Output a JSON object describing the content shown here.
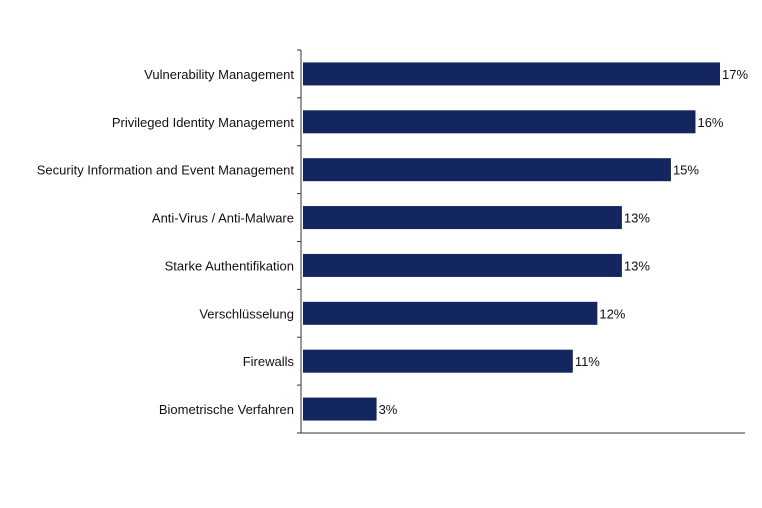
{
  "chart_data": {
    "type": "bar",
    "orientation": "horizontal",
    "categories": [
      "Vulnerability Management",
      "Privileged Identity Management",
      "Security Information and Event Management",
      "Anti-Virus / Anti-Malware",
      "Starke Authentifikation",
      "Verschlüsselung",
      "Firewalls",
      "Biometrische Verfahren"
    ],
    "values": [
      17,
      16,
      15,
      13,
      13,
      12,
      11,
      3
    ],
    "value_labels": [
      "17%",
      "16%",
      "15%",
      "13%",
      "13%",
      "12%",
      "11%",
      "3%"
    ],
    "unit": "%",
    "xlim": [
      0,
      18
    ],
    "bar_color": "#132660",
    "grid": false,
    "legend": "none",
    "title": "",
    "xlabel": "",
    "ylabel": ""
  }
}
